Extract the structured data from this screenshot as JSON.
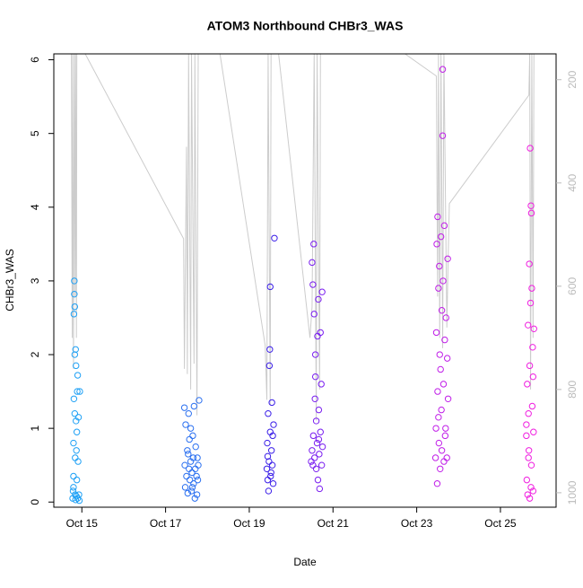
{
  "chart_data": {
    "type": "scatter",
    "title": "ATOM3 Northbound CHBr3_WAS",
    "xlabel": "Date",
    "ylabel": "CHBr3_WAS",
    "xlim": [
      14.33,
      26.33
    ],
    "xticks": [
      {
        "value": 15,
        "label": "Oct 15"
      },
      {
        "value": 17,
        "label": "Oct 17"
      },
      {
        "value": 19,
        "label": "Oct 19"
      },
      {
        "value": 21,
        "label": "Oct 21"
      },
      {
        "value": 23,
        "label": "Oct 23"
      },
      {
        "value": 25,
        "label": "Oct 25"
      }
    ],
    "ylim": [
      -0.07,
      6.08
    ],
    "yticks": [
      0,
      1,
      2,
      3,
      4,
      5,
      6
    ],
    "y2lim": [
      1028,
      150
    ],
    "y2ticks": [
      200,
      400,
      600,
      800,
      1000
    ],
    "series": [
      {
        "type": "line",
        "axis": "y2",
        "color": "#cccccc",
        "x": [
          14.75,
          14.77,
          14.78,
          14.8,
          14.82,
          14.84,
          14.85,
          14.87,
          14.88,
          14.92,
          15.08,
          17.43,
          17.45,
          17.5,
          17.52,
          17.55,
          17.6,
          17.62,
          17.68,
          17.7,
          17.75,
          17.78,
          18.0,
          18.3,
          19.38,
          19.42,
          19.45,
          19.5,
          19.52,
          19.58,
          19.7,
          20.45,
          20.5,
          20.55,
          20.6,
          20.62,
          20.68,
          20.7,
          20.75,
          22.72,
          23.47,
          23.5,
          23.52,
          23.55,
          23.58,
          23.62,
          23.65,
          23.72,
          23.75,
          23.78,
          25.68,
          25.7,
          25.72,
          25.75,
          25.78,
          25.8,
          25.85
        ],
        "values": [
          150,
          700,
          150,
          760,
          150,
          620,
          150,
          700,
          150,
          150,
          150,
          508,
          760,
          330,
          770,
          150,
          800,
          150,
          750,
          150,
          850,
          150,
          150,
          150,
          715,
          820,
          150,
          830,
          150,
          150,
          150,
          700,
          640,
          150,
          860,
          150,
          800,
          150,
          150,
          150,
          193,
          620,
          150,
          700,
          150,
          720,
          150,
          680,
          550,
          440,
          230,
          150,
          800,
          150,
          700,
          150,
          150
        ]
      },
      {
        "color": "#1ea0f5",
        "x": [
          14.78,
          14.79,
          14.8,
          14.8,
          14.81,
          14.81,
          14.82,
          14.82,
          14.83,
          14.83,
          14.84,
          14.84,
          14.85,
          14.85,
          14.86,
          14.86,
          14.87,
          14.88,
          14.88,
          14.89,
          14.9,
          14.9,
          14.91,
          14.92,
          14.93,
          14.94,
          14.95,
          14.83,
          14.8,
          14.87
        ],
        "values": [
          0.05,
          0.15,
          0.35,
          0.8,
          1.4,
          2.55,
          3.0,
          2.82,
          2.65,
          1.2,
          0.6,
          0.1,
          0.03,
          2.07,
          1.85,
          1.1,
          0.08,
          0.3,
          0.95,
          1.5,
          0.05,
          1.72,
          0.55,
          1.15,
          0.1,
          0.02,
          1.5,
          2.0,
          0.2,
          0.7
        ]
      },
      {
        "color": "#2b70f0",
        "x": [
          17.45,
          17.46,
          17.47,
          17.48,
          17.5,
          17.52,
          17.53,
          17.55,
          17.56,
          17.57,
          17.58,
          17.6,
          17.6,
          17.62,
          17.63,
          17.65,
          17.66,
          17.67,
          17.68,
          17.7,
          17.71,
          17.72,
          17.74,
          17.75,
          17.76,
          17.77,
          17.78,
          17.8,
          17.54,
          17.64
        ],
        "values": [
          1.28,
          0.5,
          0.2,
          1.05,
          0.35,
          0.7,
          0.12,
          1.2,
          0.45,
          0.85,
          0.3,
          1.0,
          0.55,
          0.15,
          0.4,
          0.9,
          0.6,
          0.25,
          1.3,
          0.05,
          0.45,
          0.75,
          0.35,
          0.1,
          0.6,
          0.3,
          0.5,
          1.38,
          0.65,
          0.2
        ]
      },
      {
        "color": "#3a1ee8",
        "x": [
          19.42,
          19.43,
          19.44,
          19.45,
          19.46,
          19.47,
          19.48,
          19.49,
          19.5,
          19.5,
          19.52,
          19.53,
          19.54,
          19.55,
          19.56,
          19.57,
          19.58,
          19.6,
          19.44,
          19.51
        ],
        "values": [
          0.45,
          0.8,
          0.3,
          1.2,
          0.15,
          0.55,
          1.85,
          2.07,
          2.92,
          0.95,
          0.4,
          0.7,
          1.35,
          0.5,
          0.9,
          0.25,
          1.05,
          3.58,
          0.62,
          0.35
        ]
      },
      {
        "color": "#7a1ef0",
        "x": [
          20.48,
          20.5,
          20.5,
          20.52,
          20.53,
          20.54,
          20.55,
          20.56,
          20.57,
          20.58,
          20.6,
          20.6,
          20.62,
          20.63,
          20.64,
          20.65,
          20.66,
          20.67,
          20.68,
          20.7,
          20.7,
          20.72,
          20.73,
          20.74,
          20.75,
          20.52,
          20.58,
          20.66
        ],
        "values": [
          0.55,
          0.7,
          3.25,
          2.95,
          0.9,
          3.5,
          2.55,
          0.6,
          1.4,
          2.0,
          0.45,
          1.1,
          0.8,
          2.25,
          0.3,
          2.75,
          1.25,
          0.65,
          0.18,
          2.3,
          0.95,
          1.6,
          0.5,
          2.85,
          0.75,
          0.5,
          1.7,
          0.85
        ]
      },
      {
        "color": "#c01ee8",
        "x": [
          23.45,
          23.46,
          23.47,
          23.48,
          23.49,
          23.5,
          23.5,
          23.52,
          23.53,
          23.54,
          23.55,
          23.56,
          23.57,
          23.58,
          23.59,
          23.6,
          23.6,
          23.62,
          23.62,
          23.63,
          23.64,
          23.65,
          23.66,
          23.67,
          23.68,
          23.69,
          23.7,
          23.72,
          23.73,
          23.74,
          23.75,
          23.52
        ],
        "values": [
          0.6,
          1.0,
          2.3,
          3.5,
          0.25,
          3.87,
          1.5,
          2.9,
          0.8,
          3.2,
          2.0,
          0.45,
          1.8,
          3.6,
          1.25,
          2.6,
          0.7,
          5.87,
          4.97,
          3.0,
          1.6,
          0.55,
          3.75,
          2.2,
          0.9,
          1.0,
          2.5,
          0.6,
          1.95,
          3.3,
          1.4,
          1.15
        ]
      },
      {
        "color": "#f01ee0",
        "x": [
          25.62,
          25.63,
          25.64,
          25.65,
          25.66,
          25.67,
          25.68,
          25.69,
          25.7,
          25.7,
          25.71,
          25.72,
          25.73,
          25.74,
          25.74,
          25.75,
          25.76,
          25.77,
          25.78,
          25.78,
          25.79,
          25.8,
          25.62,
          25.67,
          25.73
        ],
        "values": [
          0.9,
          0.3,
          1.6,
          0.1,
          2.4,
          1.2,
          0.7,
          3.23,
          0.05,
          1.85,
          4.8,
          2.7,
          4.02,
          3.92,
          0.5,
          2.9,
          1.3,
          2.1,
          0.15,
          1.7,
          0.95,
          2.35,
          1.05,
          0.6,
          0.2
        ]
      }
    ]
  }
}
